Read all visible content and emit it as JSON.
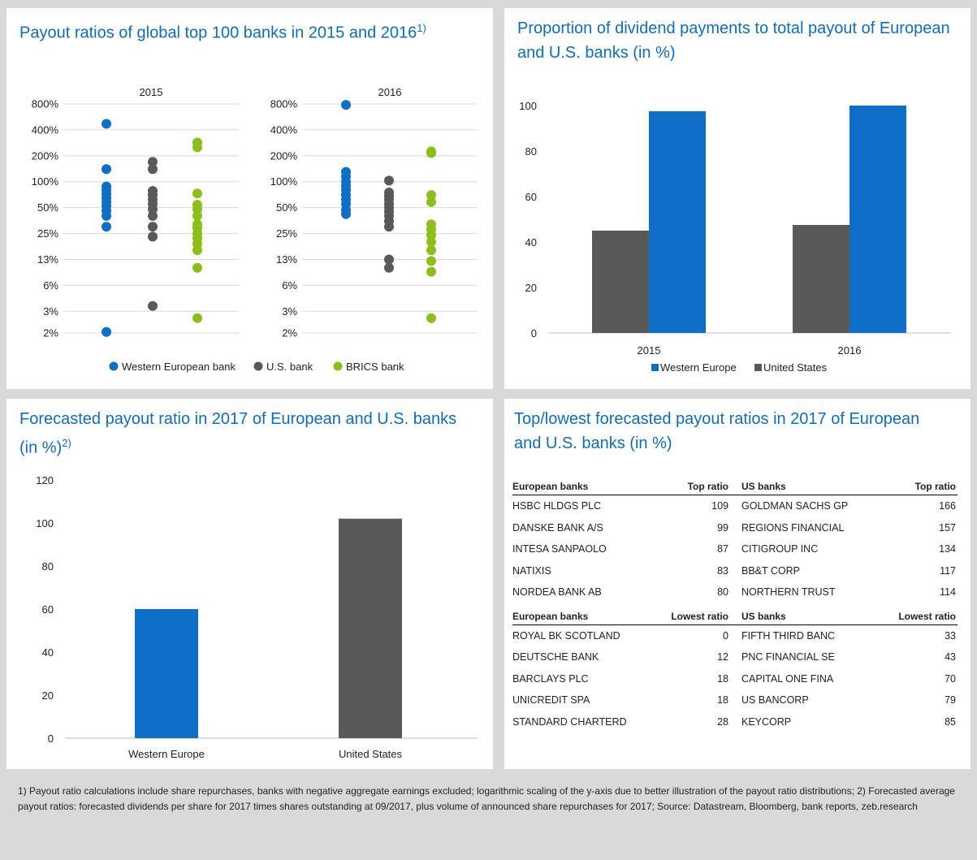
{
  "scatter_panel": {
    "title": "Payout ratios of global top 100 banks in 2015 and 2016",
    "title_sup": "1)"
  },
  "dividend_panel": {
    "title": "Proportion of dividend payments to total payout of European and U.S. banks (in %)"
  },
  "forecast_panel": {
    "title": "Forecasted payout ratio in 2017 of European and U.S. banks (in %)",
    "title_sup": "2)"
  },
  "table_panel": {
    "title": "Top/lowest forecasted payout ratios in 2017 of European and U.S. banks (in %)",
    "top_headers": [
      "European banks",
      "Top ratio",
      "US banks",
      "Top ratio"
    ],
    "top_rows": [
      [
        "HSBC HLDGS PLC",
        "109",
        "GOLDMAN SACHS GP",
        "166"
      ],
      [
        "DANSKE BANK A/S",
        "99",
        "REGIONS FINANCIAL",
        "157"
      ],
      [
        "INTESA SANPAOLO",
        "87",
        "CITIGROUP INC",
        "134"
      ],
      [
        "NATIXIS",
        "83",
        "BB&T CORP",
        "117"
      ],
      [
        "NORDEA BANK AB",
        "80",
        "NORTHERN TRUST",
        "114"
      ]
    ],
    "low_headers": [
      "European banks",
      "Lowest ratio",
      "US banks",
      "Lowest ratio"
    ],
    "low_rows": [
      [
        "ROYAL BK SCOTLAND",
        "0",
        "FIFTH THIRD BANC",
        "33"
      ],
      [
        "DEUTSCHE BANK",
        "12",
        "PNC FINANCIAL SE",
        "43"
      ],
      [
        "BARCLAYS PLC",
        "18",
        "CAPITAL ONE FINA",
        "70"
      ],
      [
        "UNICREDIT SPA",
        "18",
        "US BANCORP",
        "79"
      ],
      [
        "STANDARD CHARTERD",
        "28",
        "KEYCORP",
        "85"
      ]
    ]
  },
  "footnote": "1) Payout ratio calculations include share repurchases, banks with negative aggregate earnings excluded; logarithmic scaling of the y-axis due to better illustration of the payout ratio distributions; 2) Forecasted average payout ratios: forecasted dividends per share for 2017 times shares outstanding at 09/2017, plus volume of announced share repurchases for 2017; Source: Datastream, Bloomberg, bank reports, zeb.research",
  "colors": {
    "western_europe": "#0f6fc6",
    "us": "#595959",
    "brics": "#8cbf1a",
    "title": "#0f6db8"
  },
  "chart_data": [
    {
      "type": "scatter",
      "title": "Payout ratios of global top 100 banks in 2015 and 2016",
      "scale": "log",
      "y_ticks": [
        "800%",
        "400%",
        "200%",
        "100%",
        "50%",
        "25%",
        "13%",
        "6%",
        "3%",
        "2%"
      ],
      "legend": [
        "Western European bank",
        "U.S. bank",
        "BRICS bank"
      ],
      "legend_position": "bottom",
      "panels": [
        {
          "label": "2015",
          "series": [
            {
              "name": "Western European bank",
              "values": [
                470,
                140,
                88,
                80,
                72,
                65,
                58,
                52,
                46,
                40,
                30,
                1.8
              ]
            },
            {
              "name": "U.S. bank",
              "values": [
                170,
                140,
                78,
                70,
                62,
                55,
                48,
                40,
                30,
                23,
                3.6
              ]
            },
            {
              "name": "BRICS bank",
              "values": [
                285,
                250,
                73,
                54,
                48,
                40,
                32,
                29,
                25,
                22,
                19,
                16,
                10,
                2.6
              ]
            }
          ]
        },
        {
          "label": "2016",
          "series": [
            {
              "name": "Western European bank",
              "values": [
                780,
                130,
                115,
                100,
                90,
                80,
                70,
                62,
                55,
                47,
                42
              ]
            },
            {
              "name": "U.S. bank",
              "values": [
                103,
                75,
                68,
                62,
                55,
                50,
                45,
                40,
                35,
                30,
                12.5,
                10
              ]
            },
            {
              "name": "BRICS bank",
              "values": [
                225,
                215,
                70,
                58,
                32,
                28,
                24,
                20,
                16,
                12,
                9,
                2.6
              ]
            }
          ]
        }
      ]
    },
    {
      "type": "bar",
      "title": "Proportion of dividend payments to total payout of European and U.S. banks (in %)",
      "categories": [
        "2015",
        "2016"
      ],
      "series": [
        {
          "name": "United States",
          "values": [
            45,
            47.5
          ]
        },
        {
          "name": "Western Europe",
          "values": [
            97.5,
            100
          ]
        }
      ],
      "ylim": [
        0,
        100
      ],
      "y_ticks": [
        0,
        20,
        40,
        60,
        80,
        100
      ],
      "legend": [
        "Western Europe",
        "United States"
      ],
      "legend_position": "bottom",
      "grid": false
    },
    {
      "type": "bar",
      "title": "Forecasted payout ratio in 2017 of European and U.S. banks (in %)",
      "categories": [
        "Western Europe",
        "United States"
      ],
      "values": [
        60,
        102
      ],
      "ylim": [
        0,
        120
      ],
      "y_ticks": [
        0,
        20,
        40,
        60,
        80,
        100,
        120
      ],
      "grid": false
    }
  ]
}
